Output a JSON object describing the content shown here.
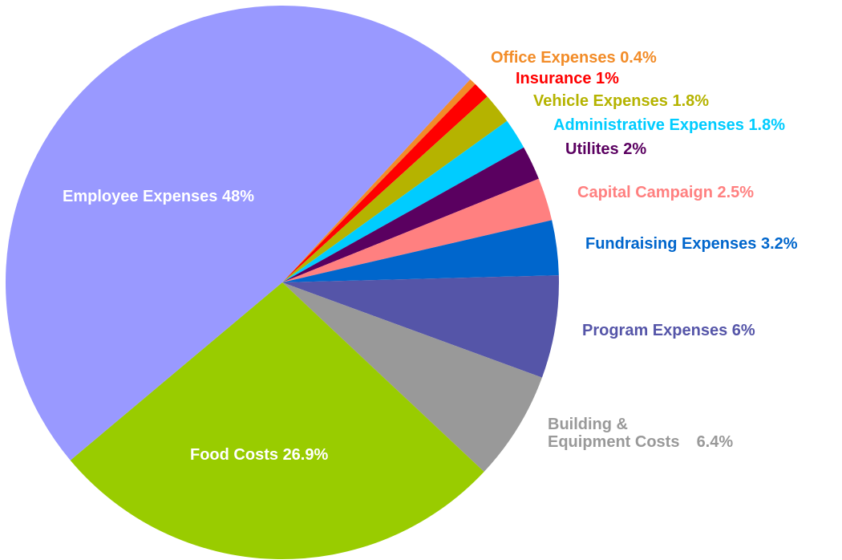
{
  "chart_data": {
    "type": "pie",
    "categories": [
      "Office Expenses",
      "Insurance",
      "Vehicle Expenses",
      "Administrative Expenses",
      "Utilites",
      "Capital Campaign",
      "Fundraising Expenses",
      "Program Expenses",
      "Building & Equipment Costs",
      "Food Costs",
      "Employee Expenses"
    ],
    "values": [
      0.4,
      1,
      1.8,
      1.8,
      2,
      2.5,
      3.2,
      6,
      6.4,
      26.9,
      48
    ],
    "value_labels": [
      "0.4%",
      "1%",
      "1.8%",
      "1.8%",
      "2%",
      "2.5%",
      "3.2%",
      "6%",
      "6.4%",
      "26.9%",
      "48%"
    ],
    "colors": [
      "#f28c28",
      "#ff0000",
      "#b5b300",
      "#00ccff",
      "#5a0060",
      "#ff8080",
      "#0066cc",
      "#5555a8",
      "#999999",
      "#99cc00",
      "#9999ff"
    ]
  }
}
